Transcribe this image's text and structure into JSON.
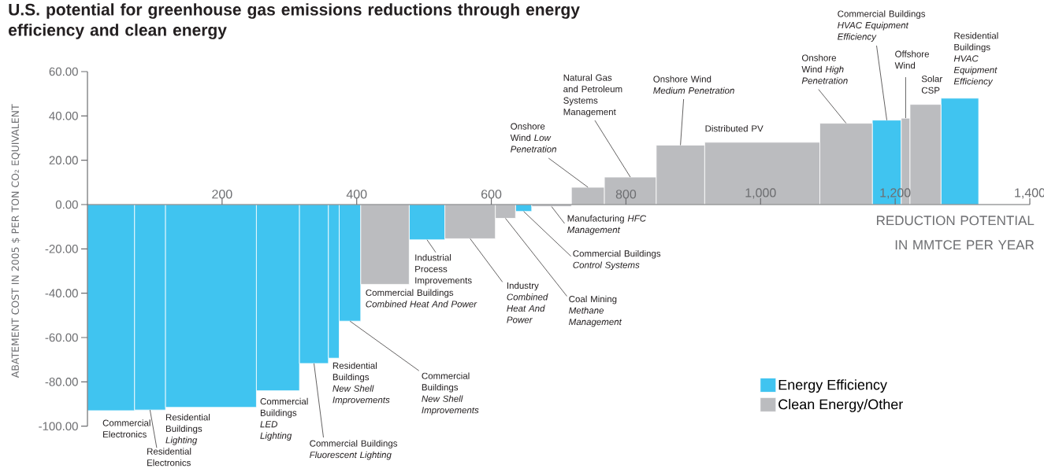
{
  "chart_data": {
    "type": "histogram",
    "title": "U.S. potential for greenhouse gas emissions reductions through energy efficiency and clean energy",
    "xlabel": "REDUCTION POTENTIAL IN MMTCE PER YEAR",
    "ylabel": "ABATEMENT COST IN 2005 $ PER TON CO₂ EQUIVALENT",
    "bins": [
      0,
      70,
      116,
      251,
      315,
      358,
      374,
      406,
      478,
      531,
      606,
      636,
      660,
      719,
      768,
      845,
      917,
      1088,
      1166,
      1209,
      1222,
      1268,
      1324
    ],
    "series": [
      {
        "name": "Energy Efficiency",
        "color": "#40c4f0",
        "values": [
          -93,
          -92.7,
          -91.5,
          -84,
          -71.7,
          -69.3,
          -52.6,
          null,
          -15.9,
          null,
          null,
          -3.1,
          null,
          null,
          null,
          null,
          null,
          null,
          38.1,
          null,
          null,
          48
        ]
      },
      {
        "name": "Clean Energy/Other",
        "color": "#bbbcbf",
        "values": [
          null,
          null,
          null,
          null,
          null,
          null,
          null,
          -36,
          null,
          -15.4,
          -6.2,
          null,
          -0.9,
          7.8,
          12.4,
          26.8,
          28.1,
          36.7,
          null,
          39,
          45.2,
          null
        ]
      }
    ],
    "xlim": [
      0,
      1400
    ],
    "ylim": [
      -100,
      60
    ],
    "xticks": [
      200,
      400,
      600,
      800,
      {
        "value": 1000,
        "label": "1,000"
      },
      {
        "value": 1200,
        "label": "1,200"
      },
      {
        "value": 1400,
        "label": "1,400"
      }
    ],
    "yticks": [
      {
        "value": -100,
        "label": "-100.00"
      },
      {
        "value": -80,
        "label": "-80.00"
      },
      {
        "value": -60,
        "label": "-60.00"
      },
      {
        "value": -40,
        "label": "-40.00"
      },
      {
        "value": -20,
        "label": "-20.00"
      },
      {
        "value": 0,
        "label": "0.00"
      },
      {
        "value": 20,
        "label": "20.00"
      },
      {
        "value": 40,
        "label": "40.00"
      },
      {
        "value": 60,
        "label": "60.00"
      }
    ],
    "legend": "bottom right",
    "annotations": [
      {
        "text": "Commercial Electronics",
        "x": 35,
        "y": -93
      },
      {
        "text": "Residential Electronics",
        "x": 93,
        "y": -92.7
      },
      {
        "text": "Residential Buildings *Lighting*",
        "x": 183.5,
        "y": -91.5
      },
      {
        "text": "Commercial Buildings *LED Lighting*",
        "x": 283,
        "y": -84
      },
      {
        "text": "Commercial Buildings *Fluorescent Lighting*",
        "x": 336.5,
        "y": -71.7
      },
      {
        "text": "Residential Buildings *New Shell Improvements*",
        "x": 366,
        "y": -69.3
      },
      {
        "text": "Commercial Buildings *New Shell Improvements*",
        "x": 390,
        "y": -52.6
      },
      {
        "text": "Commercial Buildings *Combined Heat And Power*",
        "x": 442,
        "y": -36
      },
      {
        "text": "Industrial Process Improvements",
        "x": 504.5,
        "y": -15.9
      },
      {
        "text": "Industry *Combined Heat And Power*",
        "x": 568.5,
        "y": -15.4
      },
      {
        "text": "Coal Mining *Methane Management*",
        "x": 621,
        "y": -6.2
      },
      {
        "text": "Commercial Buildings *Control Systems*",
        "x": 648,
        "y": -3.1
      },
      {
        "text": "Manufacturing *HFC Management*",
        "x": 689.5,
        "y": -0.9
      },
      {
        "text": "Onshore Wind *Low Penetration*",
        "x": 743.5,
        "y": 7.8
      },
      {
        "text": "Natural Gas and Petroleum Systems Management",
        "x": 806.5,
        "y": 12.4
      },
      {
        "text": "Onshore Wind *Medium Penetration*",
        "x": 881,
        "y": 26.8
      },
      {
        "text": "Distributed PV",
        "x": 1002.5,
        "y": 28.1
      },
      {
        "text": "Onshore Wind *High Penetration*",
        "x": 1127,
        "y": 36.7
      },
      {
        "text": "Commercial Buildings *HVAC Equipment Efficiency*",
        "x": 1187.5,
        "y": 38.1
      },
      {
        "text": "Offshore Wind",
        "x": 1215.5,
        "y": 39
      },
      {
        "text": "Solar CSP",
        "x": 1245,
        "y": 45.2
      },
      {
        "text": "Residential Buildings *HVAC Equipment Efficiency*",
        "x": 1296,
        "y": 48
      }
    ]
  }
}
